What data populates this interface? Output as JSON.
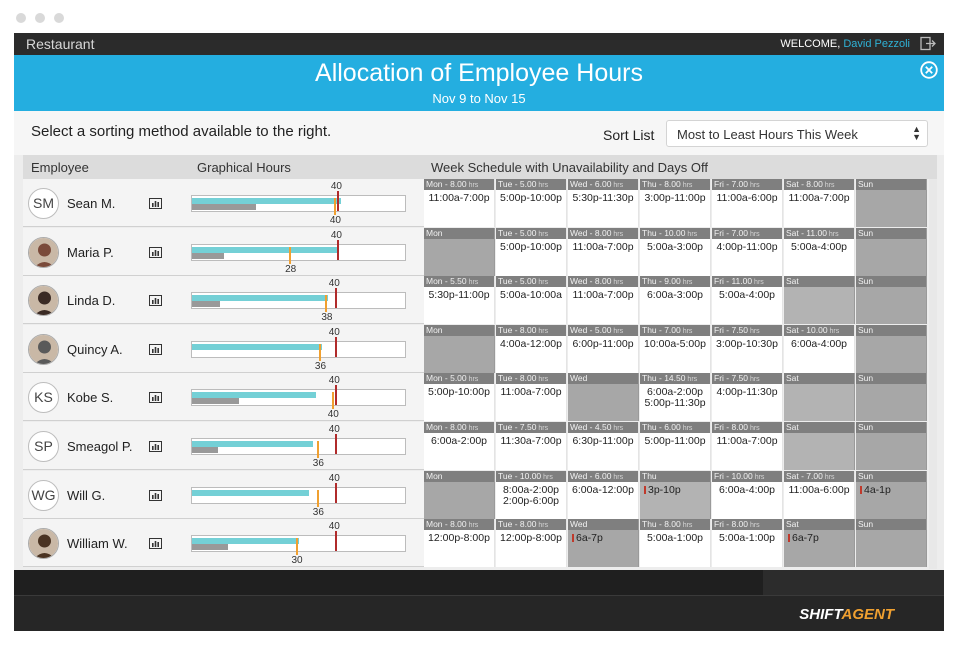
{
  "app": {
    "name": "Restaurant",
    "welcome": "WELCOME,",
    "user": "David Pezzoli"
  },
  "banner": {
    "title": "Allocation of Employee Hours",
    "subtitle": "Nov 9 to Nov 15"
  },
  "sort": {
    "hint": "Select a sorting method available to the right.",
    "label": "Sort List",
    "selected": "Most to Least Hours This Week"
  },
  "columns": {
    "employee": "Employee",
    "graphical": "Graphical Hours",
    "week": "Week Schedule with Unavailability and Days Off"
  },
  "hours_unit": "hrs",
  "colors": {
    "accent": "#24aee0",
    "scheduled": "#74d0d6",
    "target_marker": "#b02b2b",
    "actual_marker": "#f0a030",
    "unavailable": "#c0392b"
  },
  "employees": [
    {
      "name": "Sean M.",
      "initials": "SM",
      "photo": false,
      "max": "40",
      "actual": "40",
      "max_frac": 0.68,
      "actual_frac": 0.68,
      "bar_frac": 0.7,
      "gray_frac": 0.3,
      "days": [
        {
          "head": "Mon - 8.00",
          "hrs": true,
          "shift": "11:00a-7:00p",
          "off": false
        },
        {
          "head": "Tue - 5.00",
          "hrs": true,
          "shift": "5:00p-10:00p",
          "off": false
        },
        {
          "head": "Wed - 6.00",
          "hrs": true,
          "shift": "5:30p-11:30p",
          "off": false
        },
        {
          "head": "Thu - 8.00",
          "hrs": true,
          "shift": "3:00p-11:00p",
          "off": false
        },
        {
          "head": "Fri - 7.00",
          "hrs": true,
          "shift": "11:00a-6:00p",
          "off": false
        },
        {
          "head": "Sat - 8.00",
          "hrs": true,
          "shift": "11:00a-7:00p",
          "off": false
        },
        {
          "head": "Sun",
          "hrs": false,
          "shift": "",
          "off": true
        }
      ]
    },
    {
      "name": "Maria P.",
      "initials": "MP",
      "photo": true,
      "max": "40",
      "actual": "28",
      "max_frac": 0.68,
      "actual_frac": 0.47,
      "bar_frac": 0.68,
      "gray_frac": 0.15,
      "days": [
        {
          "head": "Mon",
          "hrs": false,
          "shift": "",
          "off": true
        },
        {
          "head": "Tue - 5.00",
          "hrs": true,
          "shift": "5:00p-10:00p",
          "off": false
        },
        {
          "head": "Wed - 8.00",
          "hrs": true,
          "shift": "11:00a-7:00p",
          "off": false
        },
        {
          "head": "Thu - 10.00",
          "hrs": true,
          "shift": "5:00a-3:00p",
          "off": false
        },
        {
          "head": "Fri - 7.00",
          "hrs": true,
          "shift": "4:00p-11:00p",
          "off": false
        },
        {
          "head": "Sat - 11.00",
          "hrs": true,
          "shift": "5:00a-4:00p",
          "off": false
        },
        {
          "head": "Sun",
          "hrs": false,
          "shift": "",
          "off": true
        }
      ]
    },
    {
      "name": "Linda D.",
      "initials": "LD",
      "photo": true,
      "max": "40",
      "actual": "38",
      "max_frac": 0.67,
      "actual_frac": 0.64,
      "bar_frac": 0.64,
      "gray_frac": 0.13,
      "days": [
        {
          "head": "Mon - 5.50",
          "hrs": true,
          "shift": "5:30p-11:00p",
          "off": false
        },
        {
          "head": "Tue - 5.00",
          "hrs": true,
          "shift": "5:00a-10:00a",
          "off": false
        },
        {
          "head": "Wed - 8.00",
          "hrs": true,
          "shift": "11:00a-7:00p",
          "off": false
        },
        {
          "head": "Thu - 9.00",
          "hrs": true,
          "shift": "6:00a-3:00p",
          "off": false
        },
        {
          "head": "Fri - 11.00",
          "hrs": true,
          "shift": "5:00a-4:00p",
          "off": false
        },
        {
          "head": "Sat",
          "hrs": false,
          "shift": "",
          "off": true,
          "light": true
        },
        {
          "head": "Sun",
          "hrs": false,
          "shift": "",
          "off": true
        }
      ]
    },
    {
      "name": "Quincy A.",
      "initials": "QA",
      "photo": true,
      "max": "40",
      "actual": "36",
      "max_frac": 0.67,
      "actual_frac": 0.61,
      "bar_frac": 0.61,
      "gray_frac": 0.0,
      "days": [
        {
          "head": "Mon",
          "hrs": false,
          "shift": "",
          "off": true
        },
        {
          "head": "Tue - 8.00",
          "hrs": true,
          "shift": "4:00a-12:00p",
          "off": false
        },
        {
          "head": "Wed - 5.00",
          "hrs": true,
          "shift": "6:00p-11:00p",
          "off": false
        },
        {
          "head": "Thu - 7.00",
          "hrs": true,
          "shift": "10:00a-5:00p",
          "off": false
        },
        {
          "head": "Fri - 7.50",
          "hrs": true,
          "shift": "3:00p-10:30p",
          "off": false
        },
        {
          "head": "Sat - 10.00",
          "hrs": true,
          "shift": "6:00a-4:00p",
          "off": false
        },
        {
          "head": "Sun",
          "hrs": false,
          "shift": "",
          "off": true
        }
      ]
    },
    {
      "name": "Kobe S.",
      "initials": "KS",
      "photo": false,
      "max": "40",
      "actual": "40",
      "max_frac": 0.67,
      "actual_frac": 0.67,
      "bar_frac": 0.58,
      "gray_frac": 0.22,
      "days": [
        {
          "head": "Mon - 5.00",
          "hrs": true,
          "shift": "5:00p-10:00p",
          "off": false
        },
        {
          "head": "Tue - 8.00",
          "hrs": true,
          "shift": "11:00a-7:00p",
          "off": false
        },
        {
          "head": "Wed",
          "hrs": false,
          "shift": "",
          "off": true
        },
        {
          "head": "Thu - 14.50",
          "hrs": true,
          "shift": "6:00a-2:00p",
          "shift2": "5:00p-11:30p",
          "off": false
        },
        {
          "head": "Fri - 7.50",
          "hrs": true,
          "shift": "4:00p-11:30p",
          "off": false
        },
        {
          "head": "Sat",
          "hrs": false,
          "shift": "",
          "off": true,
          "light": true
        },
        {
          "head": "Sun",
          "hrs": false,
          "shift": "",
          "off": true
        }
      ]
    },
    {
      "name": "Smeagol P.",
      "initials": "SP",
      "photo": false,
      "max": "40",
      "actual": "36",
      "max_frac": 0.67,
      "actual_frac": 0.6,
      "bar_frac": 0.57,
      "gray_frac": 0.12,
      "days": [
        {
          "head": "Mon - 8.00",
          "hrs": true,
          "shift": "6:00a-2:00p",
          "off": false
        },
        {
          "head": "Tue - 7.50",
          "hrs": true,
          "shift": "11:30a-7:00p",
          "off": false
        },
        {
          "head": "Wed - 4.50",
          "hrs": true,
          "shift": "6:30p-11:00p",
          "off": false
        },
        {
          "head": "Thu - 6.00",
          "hrs": true,
          "shift": "5:00p-11:00p",
          "off": false
        },
        {
          "head": "Fri - 8.00",
          "hrs": true,
          "shift": "11:00a-7:00p",
          "off": false
        },
        {
          "head": "Sat",
          "hrs": false,
          "shift": "",
          "off": true,
          "light": true
        },
        {
          "head": "Sun",
          "hrs": false,
          "shift": "",
          "off": true
        }
      ]
    },
    {
      "name": "Will G.",
      "initials": "WG",
      "photo": false,
      "max": "40",
      "actual": "36",
      "max_frac": 0.67,
      "actual_frac": 0.6,
      "bar_frac": 0.55,
      "gray_frac": 0.0,
      "days": [
        {
          "head": "Mon",
          "hrs": false,
          "shift": "",
          "off": true
        },
        {
          "head": "Tue - 10.00",
          "hrs": true,
          "shift": "8:00a-2:00p",
          "shift2": "2:00p-6:00p",
          "off": false
        },
        {
          "head": "Wed - 6.00",
          "hrs": true,
          "shift": "6:00a-12:00p",
          "off": false
        },
        {
          "head": "Thu",
          "hrs": false,
          "shift": "3p-10p",
          "unav": true,
          "off": true,
          "light": true
        },
        {
          "head": "Fri - 10.00",
          "hrs": true,
          "shift": "6:00a-4:00p",
          "off": false
        },
        {
          "head": "Sat - 7.00",
          "hrs": true,
          "shift": "11:00a-6:00p",
          "off": false
        },
        {
          "head": "Sun",
          "hrs": false,
          "shift": "4a-1p",
          "unav": true,
          "off": true
        }
      ]
    },
    {
      "name": "William W.",
      "initials": "WW",
      "photo": true,
      "max": "40",
      "actual": "30",
      "max_frac": 0.67,
      "actual_frac": 0.5,
      "bar_frac": 0.5,
      "gray_frac": 0.17,
      "days": [
        {
          "head": "Mon - 8.00",
          "hrs": true,
          "shift": "12:00p-8:00p",
          "off": false
        },
        {
          "head": "Tue - 8.00",
          "hrs": true,
          "shift": "12:00p-8:00p",
          "off": false
        },
        {
          "head": "Wed",
          "hrs": false,
          "shift": "6a-7p",
          "unav": true,
          "off": true
        },
        {
          "head": "Thu - 8.00",
          "hrs": true,
          "shift": "5:00a-1:00p",
          "off": false
        },
        {
          "head": "Fri - 8.00",
          "hrs": true,
          "shift": "5:00a-1:00p",
          "off": false
        },
        {
          "head": "Sat",
          "hrs": false,
          "shift": "6a-7p",
          "unav": true,
          "off": true
        },
        {
          "head": "Sun",
          "hrs": false,
          "shift": "",
          "off": true
        }
      ]
    }
  ],
  "brand": {
    "part1": "SHIFT",
    "part2": "AGENT"
  }
}
